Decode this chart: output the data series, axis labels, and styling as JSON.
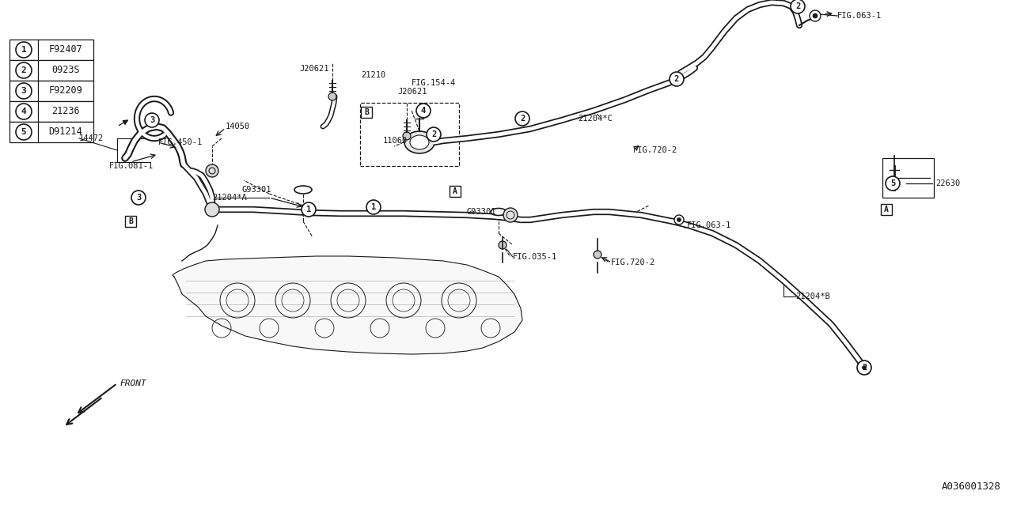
{
  "bg_color": "#ffffff",
  "line_color": "#1a1a1a",
  "part_number_ref": "A036001328",
  "part_table": [
    {
      "num": "1",
      "code": "F92407"
    },
    {
      "num": "2",
      "code": "0923S"
    },
    {
      "num": "3",
      "code": "F92209"
    },
    {
      "num": "4",
      "code": "21236"
    },
    {
      "num": "5",
      "code": "D91214"
    }
  ],
  "fig_w": 1280,
  "fig_h": 640
}
